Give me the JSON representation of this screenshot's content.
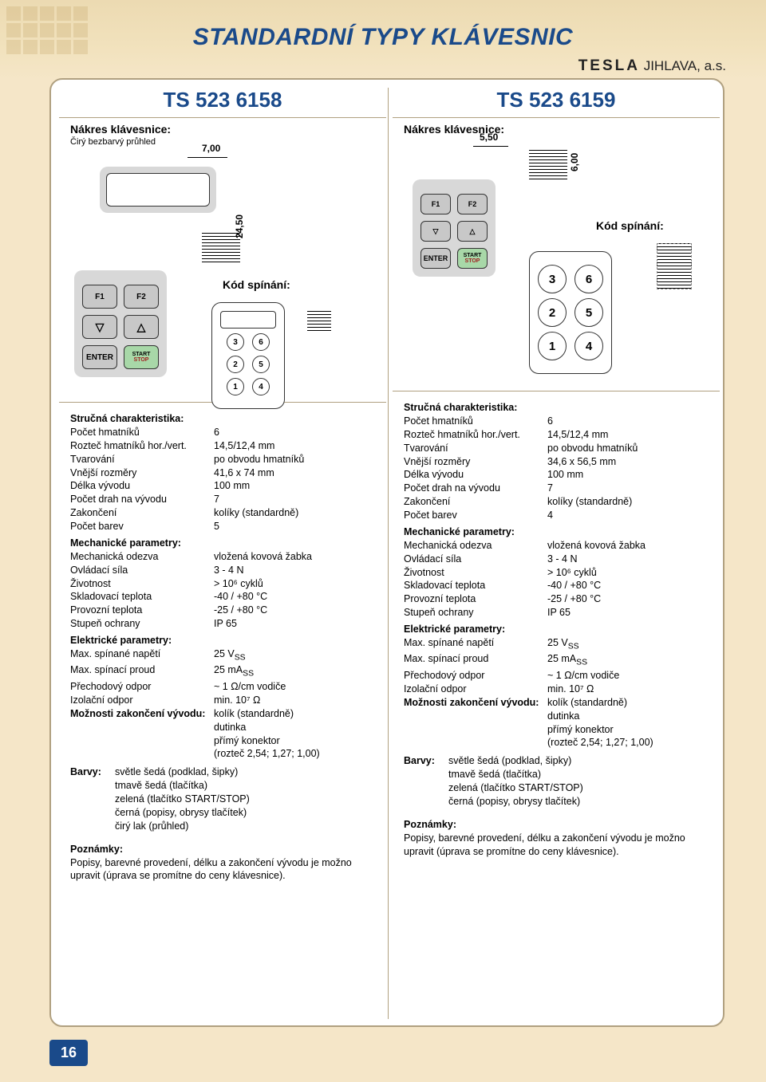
{
  "page_title": "STANDARDNÍ TYPY KLÁVESNIC",
  "brand": {
    "name": "TESLA",
    "suffix": "JIHLAVA, a.s."
  },
  "page_number": "16",
  "left": {
    "model": "TS 523 6158",
    "nakres_label": "Nákres klávesnice:",
    "view_note": "Čirý bezbarvý průhled",
    "dim_width": "7,00",
    "dim_height": "24,50",
    "kod_label": "Kód spínání:",
    "keypad_buttons": {
      "f1": "F1",
      "f2": "F2",
      "enter": "ENTER",
      "start": "START",
      "stop": "STOP"
    },
    "code_buttons": [
      "3",
      "6",
      "2",
      "5",
      "1",
      "4"
    ],
    "specs": {
      "strucna_hdr": "Stručná charakteristika:",
      "rows1": [
        [
          "Počet hmatníků",
          "6"
        ],
        [
          "Rozteč hmatníků hor./vert.",
          "14,5/12,4 mm"
        ],
        [
          "Tvarování",
          "po obvodu hmatníků"
        ],
        [
          "Vnější rozměry",
          "41,6 x 74 mm"
        ],
        [
          "Délka vývodu",
          "100 mm"
        ],
        [
          "Počet drah na vývodu",
          "7"
        ],
        [
          "Zakončení",
          "kolíky (standardně)"
        ],
        [
          "Počet barev",
          "5"
        ]
      ],
      "mech_hdr": "Mechanické parametry:",
      "rows2": [
        [
          "Mechanická odezva",
          "vložená kovová žabka"
        ],
        [
          "Ovládací síla",
          "3 - 4 N"
        ],
        [
          "Životnost",
          "> 10⁶ cyklů"
        ],
        [
          "Skladovací teplota",
          "-40 / +80 °C"
        ],
        [
          "Provozní teplota",
          "-25 / +80 °C"
        ],
        [
          "Stupeň ochrany",
          "IP 65"
        ]
      ],
      "elec_hdr": "Elektrické parametry:",
      "rows3_html": [
        [
          "Max. spínané napětí",
          "25 V<sub>SS</sub>"
        ],
        [
          "Max. spínací proud",
          "25 mA<sub>SS</sub>"
        ],
        [
          "Přechodový odpor",
          "~ 1 Ω/cm vodiče"
        ],
        [
          "Izolační odpor",
          "min. 10⁷ Ω"
        ]
      ],
      "zakonceni_hdr": "Možnosti zakončení vývodu:",
      "zakonceni_vals": [
        "kolík (standardně)",
        "dutinka",
        "přímý konektor",
        "(rozteč 2,54; 1,27; 1,00)"
      ],
      "barvy_hdr": "Barvy:",
      "barvy_vals": [
        "světle šedá (podklad, šipky)",
        "tmavě šedá (tlačítka)",
        "zelená (tlačítko START/STOP)",
        "černá (popisy, obrysy tlačítek)",
        "čirý lak (průhled)"
      ],
      "poznamky_hdr": "Poznámky:",
      "poznamky_text": "Popisy, barevné provedení, délku a zakončení vývodu je možno upravit (úprava se promítne do ceny klávesnice)."
    }
  },
  "right": {
    "model": "TS 523 6159",
    "nakres_label": "Nákres klávesnice:",
    "dim_width": "5,50",
    "dim_height": "6,00",
    "kod_label": "Kód spínání:",
    "keypad_buttons": {
      "f1": "F1",
      "f2": "F2",
      "enter": "ENTER",
      "start": "START",
      "stop": "STOP"
    },
    "code_buttons": [
      "3",
      "6",
      "2",
      "5",
      "1",
      "4"
    ],
    "specs": {
      "strucna_hdr": "Stručná charakteristika:",
      "rows1": [
        [
          "Počet hmatníků",
          "6"
        ],
        [
          "Rozteč hmatníků hor./vert.",
          "14,5/12,4 mm"
        ],
        [
          "Tvarování",
          "po obvodu hmatníků"
        ],
        [
          "Vnější rozměry",
          "34,6 x 56,5 mm"
        ],
        [
          "Délka vývodu",
          "100 mm"
        ],
        [
          "Počet drah na vývodu",
          "7"
        ],
        [
          "Zakončení",
          "kolíky (standardně)"
        ],
        [
          "Počet barev",
          "4"
        ]
      ],
      "mech_hdr": "Mechanické parametry:",
      "rows2": [
        [
          "Mechanická odezva",
          "vložená kovová žabka"
        ],
        [
          "Ovládací síla",
          "3 - 4 N"
        ],
        [
          "Životnost",
          "> 10⁶ cyklů"
        ],
        [
          "Skladovací teplota",
          "-40 / +80 °C"
        ],
        [
          "Provozní teplota",
          "-25 / +80 °C"
        ],
        [
          "Stupeň ochrany",
          "IP 65"
        ]
      ],
      "elec_hdr": "Elektrické parametry:",
      "rows3_html": [
        [
          "Max. spínané napětí",
          "25 V<sub>SS</sub>"
        ],
        [
          "Max. spínací proud",
          "25 mA<sub>SS</sub>"
        ],
        [
          "Přechodový odpor",
          "~ 1 Ω/cm vodiče"
        ],
        [
          "Izolační odpor",
          "min. 10⁷ Ω"
        ]
      ],
      "zakonceni_hdr": "Možnosti zakončení vývodu:",
      "zakonceni_vals": [
        "kolík (standardně)",
        "dutinka",
        "přímý konektor",
        "(rozteč 2,54; 1,27; 1,00)"
      ],
      "barvy_hdr": "Barvy:",
      "barvy_vals": [
        "světle šedá (podklad, šipky)",
        "tmavě šedá (tlačítka)",
        "zelená (tlačítko START/STOP)",
        "černá (popisy, obrysy tlačítek)"
      ],
      "poznamky_hdr": "Poznámky:",
      "poznamky_text": "Popisy, barevné provedení, délku a zakončení vývodu je možno upravit (úprava se promítne do ceny klávesnice)."
    }
  }
}
